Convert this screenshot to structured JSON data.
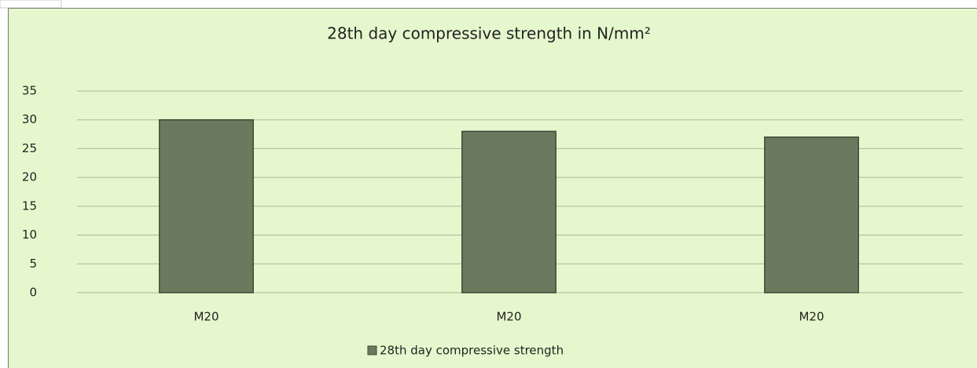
{
  "chart_data": {
    "type": "bar",
    "title": "28th day compressive strength in N/mm²",
    "categories": [
      "M20",
      "M20",
      "M20"
    ],
    "series": [
      {
        "name": "28th day compressive strength",
        "color": "#6b7a5f",
        "values": [
          30,
          28,
          27
        ]
      }
    ],
    "ylim": [
      0,
      35
    ],
    "yticks": [
      0,
      5,
      10,
      15,
      20,
      25,
      30,
      35
    ],
    "grid": true,
    "legend": "bottom"
  }
}
